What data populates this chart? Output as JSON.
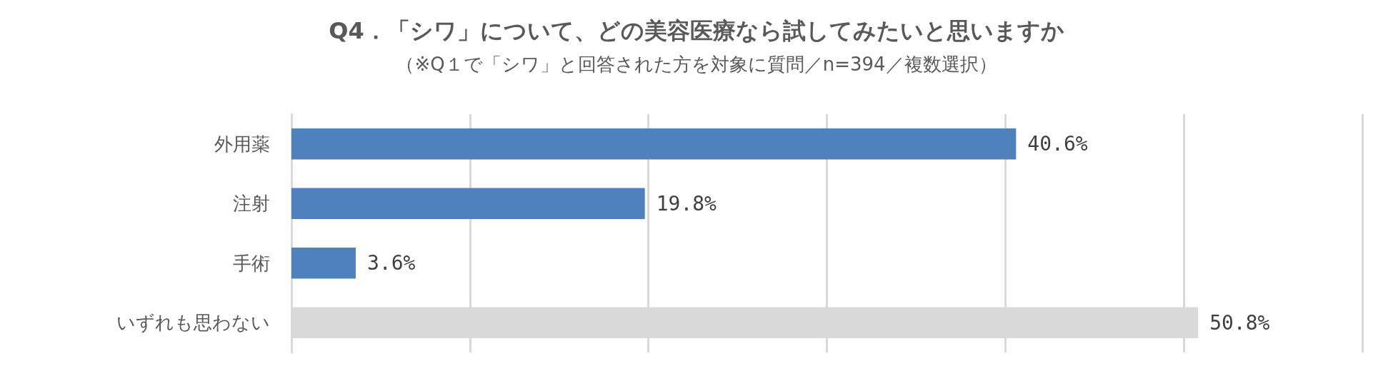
{
  "chart_data": {
    "type": "bar",
    "orientation": "horizontal",
    "title": "Q4．「シワ」について、どの美容医療なら試してみたいと思いますか",
    "subtitle": "（※Q１で「シワ」と回答された方を対象に質問／n=394／複数選択）",
    "categories": [
      "外用薬",
      "注射",
      "手術",
      "いずれも思わない"
    ],
    "values": [
      40.6,
      19.8,
      3.6,
      50.8
    ],
    "colors": [
      "#4f81bd",
      "#4f81bd",
      "#4f81bd",
      "#d9d9d9"
    ],
    "value_labels": [
      "40.6%",
      "19.8%",
      "3.6%",
      "50.8%"
    ],
    "xlim": [
      0,
      60
    ],
    "xticks": [
      {
        "value": 0,
        "label": null
      },
      {
        "value": 10,
        "label": null
      },
      {
        "value": 20,
        "label": null
      },
      {
        "value": 30,
        "label": null
      },
      {
        "value": 40,
        "label": null
      },
      {
        "value": 50,
        "label": null
      },
      {
        "value": 60,
        "label": null
      }
    ],
    "grid": "x",
    "tick_labels": "y"
  }
}
